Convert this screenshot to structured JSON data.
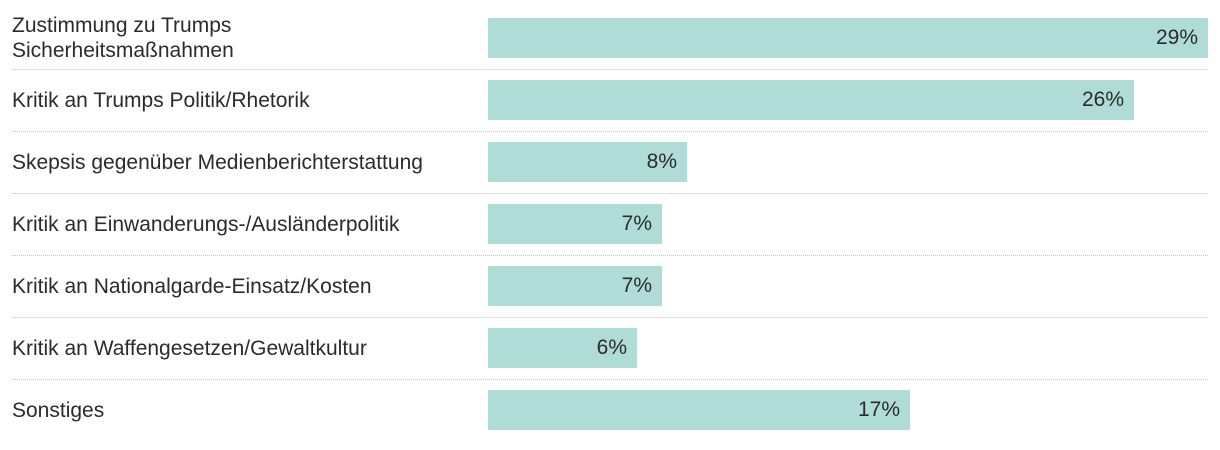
{
  "chart_data": {
    "type": "bar",
    "orientation": "horizontal",
    "categories": [
      "Zustimmung zu Trumps\nSicherheitsmaßnahmen",
      "Kritik an Trumps Politik/Rhetorik",
      "Skepsis gegenüber Medienberichterstattung",
      "Kritik an Einwanderungs-/Ausländerpolitik",
      "Kritik an Nationalgarde-Einsatz/Kosten",
      "Kritik an Waffengesetzen/Gewaltkultur",
      "Sonstiges"
    ],
    "values": [
      29,
      26,
      8,
      7,
      7,
      6,
      17
    ],
    "value_labels": [
      "29%",
      "26%",
      "8%",
      "7%",
      "7%",
      "6%",
      "17%"
    ],
    "unit": "%",
    "xlim": [
      0,
      29
    ],
    "grid": false,
    "bar_color": "#b0dcd8"
  }
}
